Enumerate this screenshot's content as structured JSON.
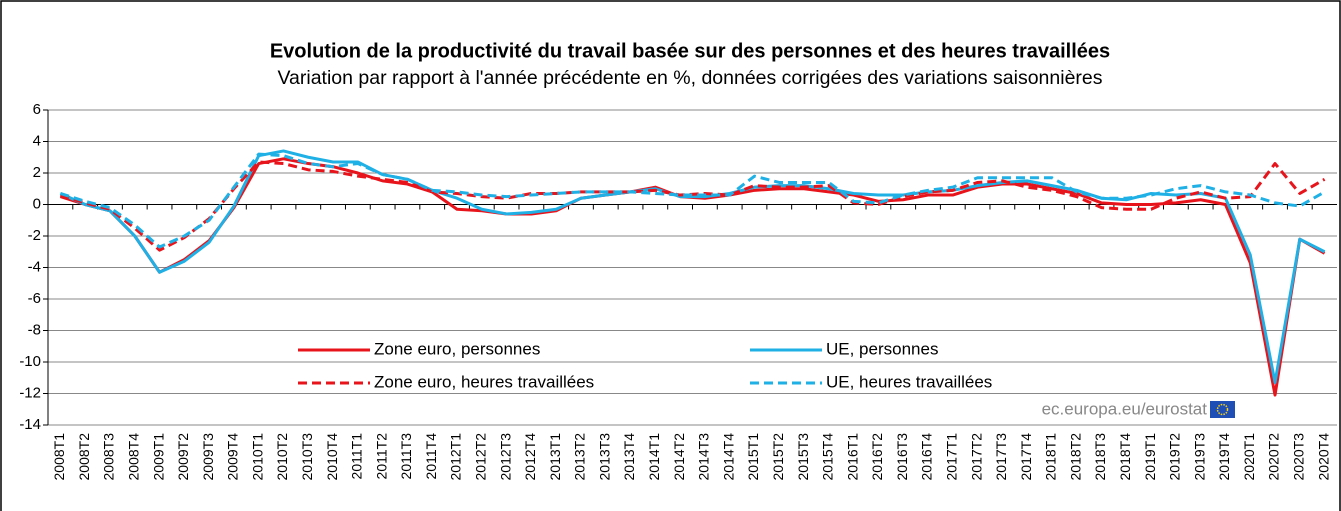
{
  "chart_data": {
    "type": "line",
    "title": "Evolution de la productivité du travail basée sur des personnes et des heures travaillées",
    "subtitle": "Variation par rapport à l'année précédente en %, données corrigées des variations saisonnières",
    "source": "ec.europa.eu/eurostat",
    "categories": [
      "2008T1",
      "2008T2",
      "2008T3",
      "2008T4",
      "2009T1",
      "2009T2",
      "2009T3",
      "2009T4",
      "2010T1",
      "2010T2",
      "2010T3",
      "2010T4",
      "2011T1",
      "2011T2",
      "2011T3",
      "2011T4",
      "2012T1",
      "2012T2",
      "2012T3",
      "2012T4",
      "2013T1",
      "2013T2",
      "2013T3",
      "2013T4",
      "2014T1",
      "2014T2",
      "2014T3",
      "2014T4",
      "2015T1",
      "2015T2",
      "2015T3",
      "2015T4",
      "2016T1",
      "2016T2",
      "2016T3",
      "2016T4",
      "2017T1",
      "2017T2",
      "2017T3",
      "2017T4",
      "2018T1",
      "2018T2",
      "2018T3",
      "2018T4",
      "2019T1",
      "2019T2",
      "2019T3",
      "2019T4",
      "2020T1",
      "2020T2",
      "2020T3",
      "2020T4"
    ],
    "series": [
      {
        "name": "Zone euro, personnes",
        "color": "#e8141c",
        "dashed": false,
        "values": [
          0.5,
          0.0,
          -0.4,
          -2.0,
          -4.3,
          -3.5,
          -2.3,
          -0.2,
          2.6,
          2.9,
          2.6,
          2.4,
          2.0,
          1.5,
          1.3,
          0.8,
          -0.3,
          -0.4,
          -0.6,
          -0.6,
          -0.4,
          0.4,
          0.6,
          0.8,
          1.1,
          0.5,
          0.4,
          0.6,
          0.9,
          1.0,
          1.0,
          0.8,
          0.6,
          0.2,
          0.3,
          0.6,
          0.6,
          1.1,
          1.3,
          1.3,
          1.0,
          0.7,
          0.1,
          0.0,
          0.0,
          0.1,
          0.3,
          0.0,
          -3.7,
          -12.1,
          -2.2,
          -3.1
        ]
      },
      {
        "name": "UE, personnes",
        "color": "#1fb0e6",
        "dashed": false,
        "values": [
          0.7,
          0.0,
          -0.4,
          -2.0,
          -4.3,
          -3.6,
          -2.4,
          -0.1,
          3.1,
          3.4,
          3.0,
          2.7,
          2.7,
          1.9,
          1.6,
          0.9,
          0.4,
          -0.3,
          -0.6,
          -0.5,
          -0.3,
          0.4,
          0.6,
          0.8,
          1.0,
          0.5,
          0.5,
          0.7,
          1.1,
          1.2,
          1.2,
          1.0,
          0.7,
          0.6,
          0.6,
          0.8,
          0.9,
          1.2,
          1.4,
          1.5,
          1.2,
          0.9,
          0.4,
          0.3,
          0.7,
          0.6,
          0.7,
          0.4,
          -3.2,
          -11.3,
          -2.2,
          -3.0
        ]
      },
      {
        "name": "Zone euro, heures travaillées",
        "color": "#e8141c",
        "dashed": true,
        "values": [
          0.6,
          0.1,
          -0.3,
          -1.5,
          -2.9,
          -2.1,
          -0.9,
          1.0,
          2.7,
          2.6,
          2.2,
          2.1,
          1.8,
          1.6,
          1.4,
          0.8,
          0.7,
          0.5,
          0.4,
          0.7,
          0.7,
          0.8,
          0.8,
          0.8,
          0.9,
          0.6,
          0.7,
          0.6,
          1.2,
          1.1,
          1.1,
          1.2,
          0.1,
          0.0,
          0.5,
          0.8,
          0.9,
          1.4,
          1.5,
          1.1,
          0.9,
          0.5,
          -0.2,
          -0.3,
          -0.3,
          0.4,
          0.8,
          0.4,
          0.5,
          2.6,
          0.7,
          1.6
        ]
      },
      {
        "name": "UE, heures travaillées",
        "color": "#1fb0e6",
        "dashed": true,
        "values": [
          0.7,
          0.2,
          -0.2,
          -1.3,
          -2.7,
          -2.0,
          -1.0,
          1.1,
          3.2,
          3.1,
          2.6,
          2.4,
          2.6,
          1.9,
          1.6,
          0.9,
          0.8,
          0.6,
          0.5,
          0.6,
          0.7,
          0.8,
          0.8,
          0.8,
          0.7,
          0.6,
          0.6,
          0.6,
          1.8,
          1.4,
          1.4,
          1.4,
          0.2,
          0.1,
          0.6,
          0.9,
          1.1,
          1.7,
          1.7,
          1.7,
          1.7,
          0.8,
          0.4,
          0.4,
          0.6,
          1.0,
          1.2,
          0.8,
          0.6,
          0.1,
          -0.1,
          0.8
        ]
      }
    ],
    "ylim": [
      -14,
      6
    ],
    "yticks": [
      -14,
      -12,
      -10,
      -8,
      -6,
      -4,
      -2,
      0,
      2,
      4,
      6
    ],
    "grid": true
  }
}
